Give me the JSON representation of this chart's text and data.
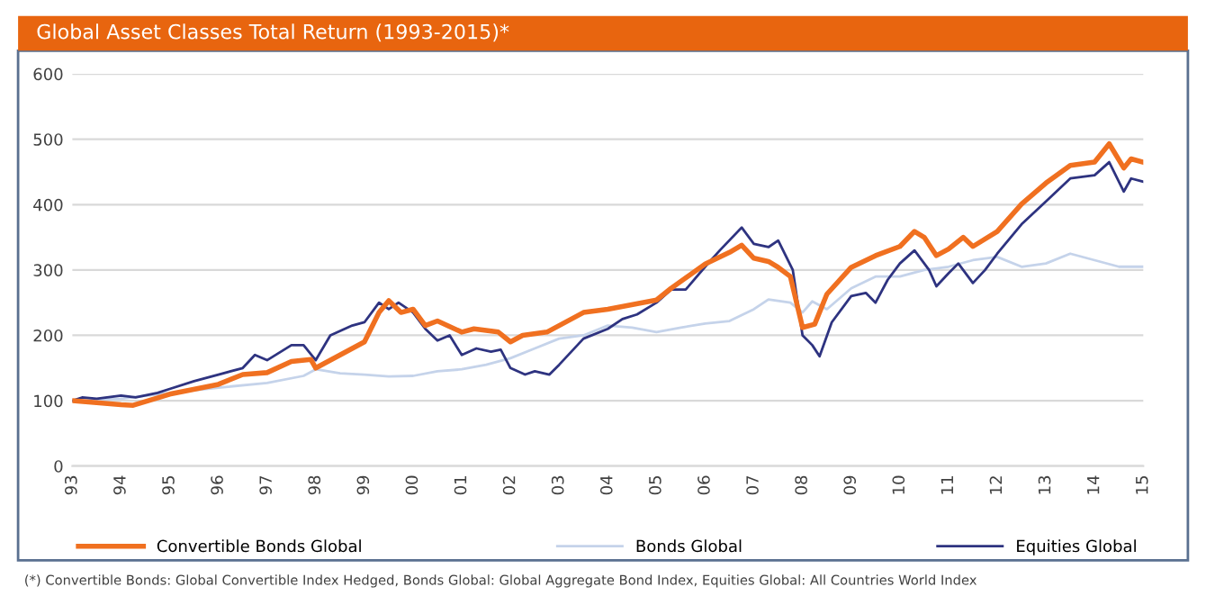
{
  "chart_data": {
    "type": "line",
    "title": "Global Asset Classes Total Return (1993-2015)*",
    "xlim": [
      1993,
      2015
    ],
    "xticks": [
      {
        "value": 1993,
        "label": "93"
      },
      {
        "value": 1994,
        "label": "94"
      },
      {
        "value": 1995,
        "label": "95"
      },
      {
        "value": 1996,
        "label": "96"
      },
      {
        "value": 1997,
        "label": "97"
      },
      {
        "value": 1998,
        "label": "98"
      },
      {
        "value": 1999,
        "label": "99"
      },
      {
        "value": 2000,
        "label": "00"
      },
      {
        "value": 2001,
        "label": "01"
      },
      {
        "value": 2002,
        "label": "02"
      },
      {
        "value": 2003,
        "label": "03"
      },
      {
        "value": 2004,
        "label": "04"
      },
      {
        "value": 2005,
        "label": "05"
      },
      {
        "value": 2006,
        "label": "06"
      },
      {
        "value": 2007,
        "label": "07"
      },
      {
        "value": 2008,
        "label": "08"
      },
      {
        "value": 2009,
        "label": "09"
      },
      {
        "value": 2010,
        "label": "10"
      },
      {
        "value": 2011,
        "label": "11"
      },
      {
        "value": 2012,
        "label": "12"
      },
      {
        "value": 2013,
        "label": "13"
      },
      {
        "value": 2014,
        "label": "14"
      },
      {
        "value": 2015,
        "label": "15"
      }
    ],
    "ylim": [
      0,
      600
    ],
    "yticks": [
      0,
      100,
      200,
      300,
      400,
      500,
      600
    ],
    "grid": "y",
    "legend": "bottom",
    "marker": "none",
    "line_style": "solid",
    "annotations": [
      "(*) Convertible Bonds: Global Convertible Index Hedged, Bonds Global: Global Aggregate Bond Index, Equities Global: All Countries World Index"
    ],
    "series": [
      {
        "name": "Convertible Bonds Global",
        "color": "#f07020",
        "x": [
          1993,
          1993.5,
          1994,
          1994.25,
          1995,
          1996,
          1996.5,
          1997,
          1997.5,
          1997.9,
          1998,
          1998.5,
          1999,
          1999.3,
          1999.5,
          1999.75,
          2000,
          2000.25,
          2000.5,
          2001,
          2001.25,
          2001.75,
          2002,
          2002.25,
          2002.75,
          2003,
          2003.5,
          2004,
          2005,
          2005.3,
          2006,
          2006.5,
          2006.75,
          2007,
          2007.3,
          2007.5,
          2007.75,
          2008,
          2008.25,
          2008.5,
          2009,
          2009.5,
          2010,
          2010.3,
          2010.5,
          2010.75,
          2011,
          2011.3,
          2011.5,
          2012,
          2012.5,
          2013,
          2013.5,
          2014,
          2014.3,
          2014.6,
          2014.75,
          2015
        ],
        "values": [
          100,
          97,
          94,
          93,
          110,
          125,
          140,
          143,
          160,
          163,
          150,
          170,
          190,
          235,
          253,
          235,
          240,
          215,
          222,
          205,
          210,
          205,
          190,
          200,
          205,
          215,
          235,
          240,
          254,
          272,
          309,
          327,
          338,
          318,
          313,
          304,
          290,
          212,
          217,
          263,
          304,
          322,
          336,
          359,
          350,
          322,
          332,
          350,
          336,
          359,
          401,
          433,
          460,
          465,
          493,
          456,
          470,
          465
        ]
      },
      {
        "name": "Bonds Global",
        "color": "#c5d3ea",
        "x": [
          1993,
          1994,
          1995,
          1996,
          1997,
          1997.75,
          1998,
          1998.5,
          1999,
          1999.5,
          2000,
          2000.5,
          2001,
          2001.5,
          2002,
          2002.5,
          2003,
          2003.5,
          2004,
          2004.5,
          2005,
          2005.5,
          2006,
          2006.5,
          2007,
          2007.3,
          2007.75,
          2008,
          2008.2,
          2008.5,
          2009,
          2009.5,
          2010,
          2010.5,
          2011,
          2011.5,
          2012,
          2012.5,
          2013,
          2013.5,
          2014,
          2014.5,
          2015
        ],
        "values": [
          100,
          103,
          112,
          120,
          127,
          138,
          148,
          142,
          140,
          137,
          138,
          145,
          148,
          155,
          165,
          180,
          195,
          200,
          215,
          212,
          205,
          212,
          218,
          222,
          240,
          255,
          250,
          235,
          252,
          240,
          272,
          290,
          290,
          300,
          305,
          315,
          320,
          305,
          310,
          325,
          315,
          305,
          305
        ]
      },
      {
        "name": "Equities Global",
        "color": "#2e3380",
        "x": [
          1993,
          1993.2,
          1993.5,
          1994,
          1994.3,
          1994.75,
          1995,
          1995.5,
          1996,
          1996.5,
          1996.75,
          1997,
          1997.5,
          1997.75,
          1998,
          1998.3,
          1998.75,
          1999,
          1999.3,
          1999.5,
          1999.7,
          2000,
          2000.25,
          2000.5,
          2000.75,
          2001,
          2001.3,
          2001.6,
          2001.8,
          2002,
          2002.3,
          2002.5,
          2002.8,
          2003,
          2003.5,
          2004,
          2004.3,
          2004.6,
          2005,
          2005.3,
          2005.6,
          2006,
          2006.3,
          2006.75,
          2007,
          2007.3,
          2007.5,
          2007.8,
          2008,
          2008.2,
          2008.35,
          2008.6,
          2009,
          2009.3,
          2009.5,
          2009.75,
          2010,
          2010.3,
          2010.6,
          2010.75,
          2011,
          2011.2,
          2011.5,
          2011.75,
          2012,
          2012.5,
          2013,
          2013.5,
          2014,
          2014.3,
          2014.6,
          2014.75,
          2015
        ],
        "values": [
          100,
          105,
          103,
          108,
          105,
          112,
          118,
          130,
          140,
          150,
          170,
          162,
          185,
          185,
          162,
          200,
          215,
          220,
          250,
          240,
          250,
          235,
          210,
          192,
          200,
          170,
          180,
          175,
          178,
          150,
          140,
          145,
          140,
          155,
          195,
          210,
          225,
          232,
          250,
          270,
          270,
          305,
          330,
          365,
          340,
          335,
          345,
          300,
          200,
          185,
          168,
          220,
          260,
          265,
          250,
          285,
          310,
          330,
          300,
          275,
          295,
          310,
          280,
          300,
          325,
          370,
          405,
          440,
          445,
          465,
          420,
          440,
          435
        ]
      }
    ]
  }
}
